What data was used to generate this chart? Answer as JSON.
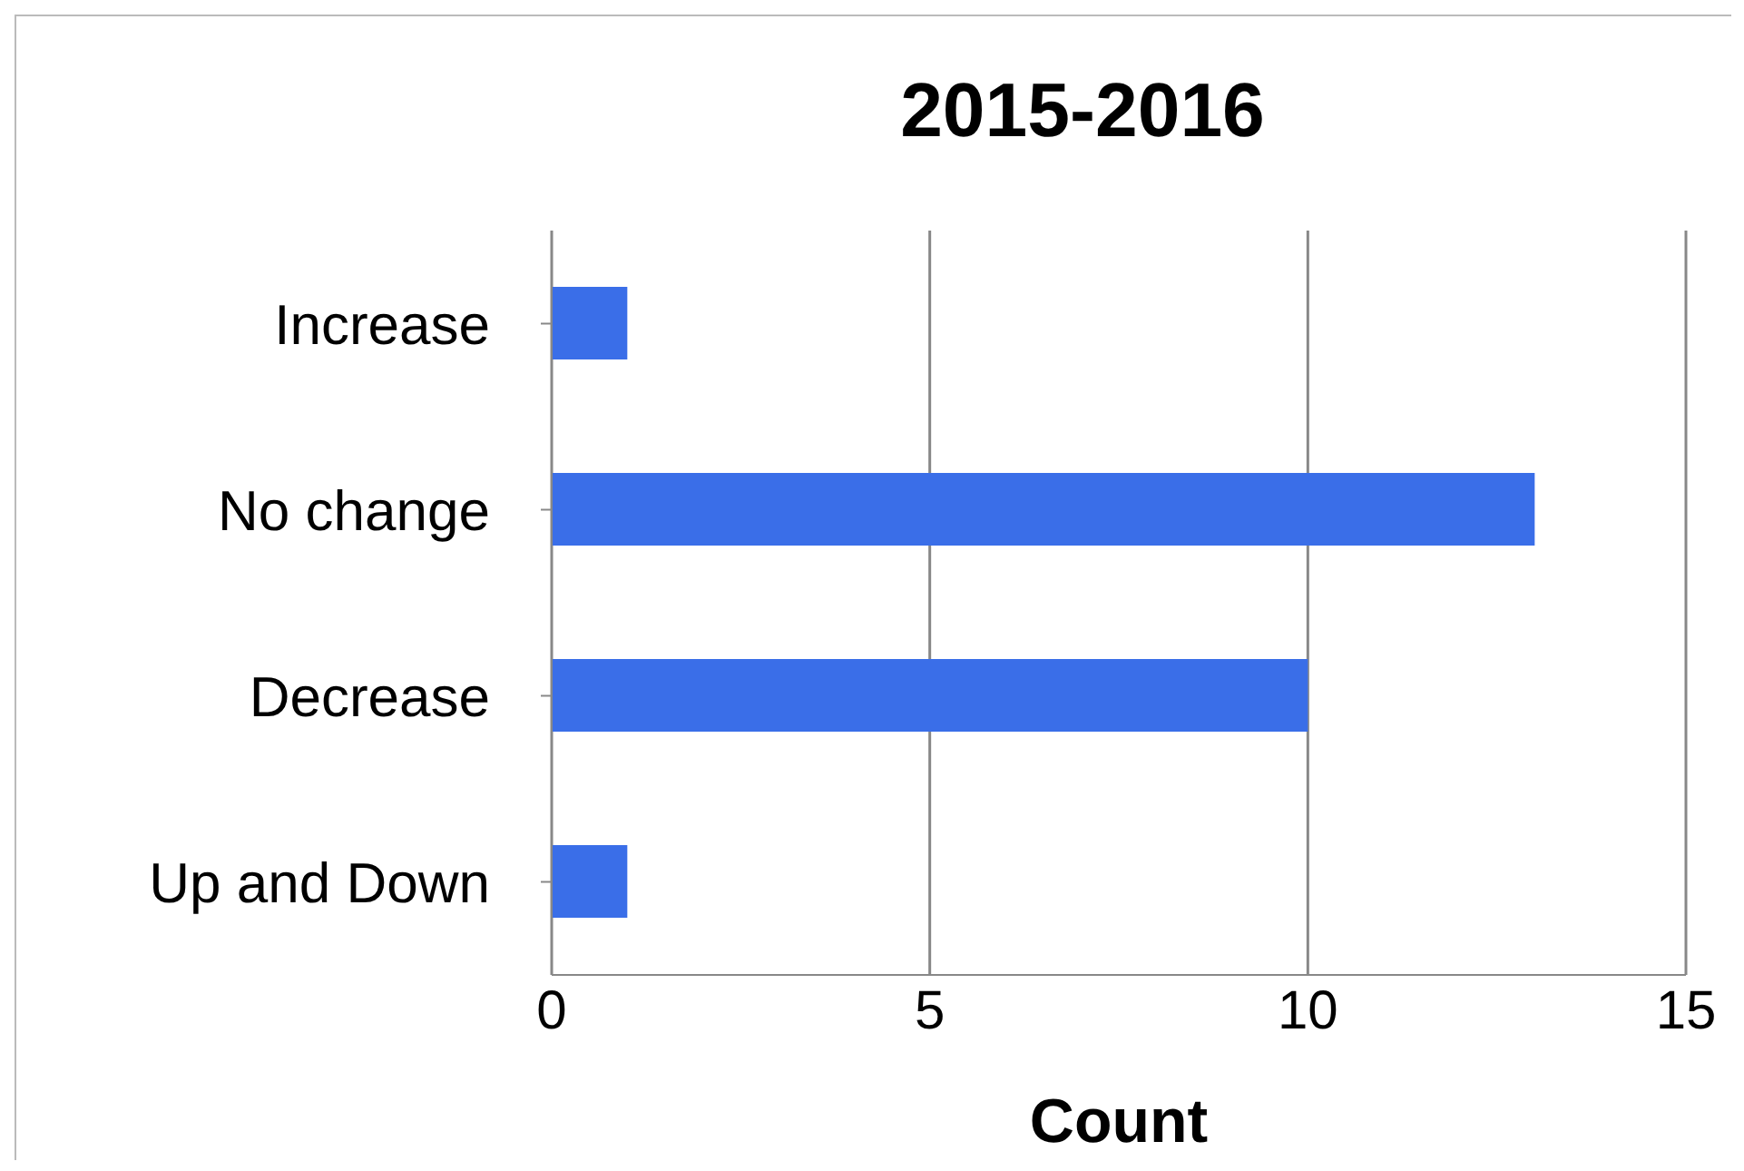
{
  "chart_data": {
    "type": "bar",
    "orientation": "horizontal",
    "title": "2015-2016",
    "xlabel": "Count",
    "categories": [
      "Increase",
      "No change",
      "Decrease",
      "Up and Down"
    ],
    "values": [
      1,
      13,
      10,
      1
    ],
    "color": "#3a6ee8",
    "xlim": [
      0,
      15
    ],
    "xticks": [
      0,
      5,
      10,
      15
    ],
    "grid": "x"
  }
}
